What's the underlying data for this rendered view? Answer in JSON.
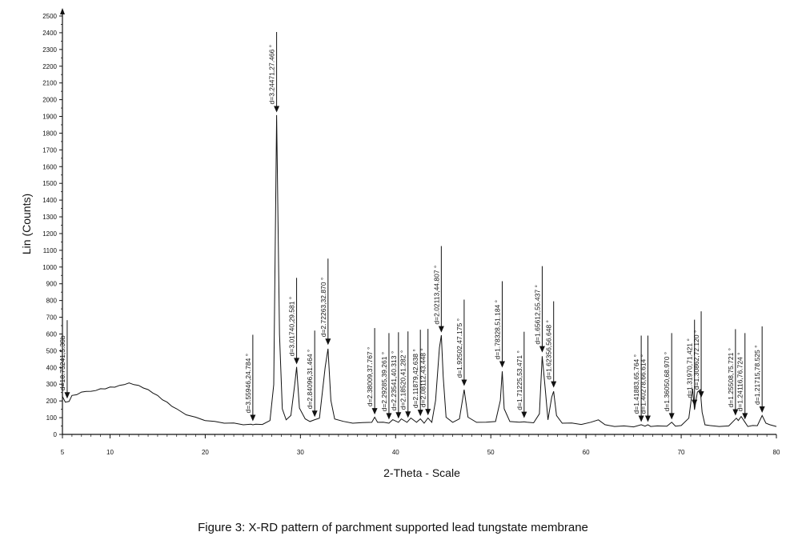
{
  "caption": "Figure 3: X-RD pattern of parchment supported lead tungstate membrane",
  "chart_data": {
    "type": "line",
    "title": "",
    "xlabel": "2-Theta - Scale",
    "ylabel": "Lin (Counts)",
    "xlim": [
      5,
      80
    ],
    "ylim": [
      0,
      2500
    ],
    "x_ticks": [
      5,
      10,
      20,
      30,
      40,
      50,
      60,
      70,
      80
    ],
    "y_ticks": [
      0,
      100,
      200,
      300,
      400,
      500,
      600,
      700,
      800,
      900,
      1000,
      1100,
      1200,
      1300,
      1400,
      1500,
      1600,
      1700,
      1800,
      1900,
      2000,
      2100,
      2200,
      2300,
      2400,
      2500
    ],
    "grid": false,
    "series": [
      {
        "x": [
          5.0,
          5.3,
          5.7,
          6.0,
          6.5,
          7.0,
          7.5,
          8.0,
          8.5,
          9.0,
          9.5,
          10.0,
          10.5,
          11.0,
          11.5,
          12.0,
          12.5,
          13.0,
          13.5,
          14.0,
          14.5,
          15.0,
          15.5,
          16.0,
          16.5,
          17.0,
          18.0,
          19.0,
          20.0,
          21.0,
          22.0,
          23.0,
          24.0,
          24.8,
          25.0,
          25.3,
          26.0,
          26.8,
          27.2,
          27.5,
          27.8,
          28.1,
          28.5,
          29.0,
          29.4,
          29.6,
          29.9,
          30.5,
          31.0,
          31.5,
          32.0,
          32.6,
          32.9,
          33.2,
          33.6,
          34.5,
          35.5,
          36.5,
          37.5,
          37.8,
          38.1,
          38.7,
          39.3,
          39.7,
          40.3,
          40.6,
          41.2,
          41.6,
          42.2,
          42.6,
          43.0,
          43.4,
          43.8,
          44.2,
          44.6,
          44.8,
          45.0,
          45.3,
          46.0,
          46.7,
          47.2,
          47.6,
          48.5,
          49.5,
          50.5,
          51.0,
          51.2,
          51.4,
          52.0,
          53.0,
          53.5,
          53.8,
          54.5,
          55.1,
          55.4,
          55.7,
          56.0,
          56.4,
          56.6,
          56.9,
          57.5,
          58.5,
          59.5,
          60.5,
          61.3,
          62.0,
          63.0,
          64.0,
          65.0,
          65.8,
          66.2,
          66.5,
          66.8,
          67.5,
          68.5,
          69.0,
          69.4,
          70.0,
          70.8,
          71.2,
          71.4,
          71.7,
          72.0,
          72.2,
          72.5,
          73.0,
          74.0,
          75.0,
          75.8,
          76.0,
          76.3,
          76.7,
          77.0,
          77.5,
          78.0,
          78.5,
          78.9,
          79.3,
          80.0
        ],
        "y": [
          230,
          190,
          200,
          230,
          240,
          250,
          260,
          255,
          265,
          270,
          275,
          280,
          285,
          290,
          300,
          305,
          300,
          290,
          280,
          265,
          250,
          230,
          210,
          190,
          170,
          150,
          120,
          100,
          85,
          75,
          70,
          65,
          60,
          58,
          60,
          58,
          62,
          80,
          300,
          1905,
          600,
          150,
          90,
          110,
          300,
          400,
          160,
          90,
          80,
          85,
          100,
          400,
          515,
          200,
          95,
          75,
          70,
          68,
          75,
          100,
          75,
          70,
          70,
          85,
          75,
          90,
          75,
          95,
          75,
          90,
          70,
          95,
          75,
          200,
          520,
          590,
          350,
          100,
          75,
          90,
          270,
          100,
          75,
          70,
          80,
          200,
          380,
          150,
          80,
          70,
          78,
          70,
          72,
          120,
          470,
          280,
          90,
          220,
          260,
          110,
          70,
          65,
          62,
          70,
          90,
          55,
          50,
          48,
          48,
          55,
          52,
          55,
          50,
          48,
          52,
          70,
          52,
          50,
          100,
          270,
          150,
          250,
          270,
          130,
          60,
          50,
          50,
          48,
          100,
          80,
          110,
          70,
          50,
          50,
          55,
          110,
          70,
          55,
          50
        ]
      }
    ],
    "annotations": [
      {
        "x": 5.5,
        "label": "d=16.75241,5.30b"
      },
      {
        "x": 25.0,
        "label": "d=3.55946,24.784 °"
      },
      {
        "x": 27.5,
        "label": "d=3.24471,27.466 °"
      },
      {
        "x": 29.6,
        "label": "d=3.01740,29.581 °"
      },
      {
        "x": 31.5,
        "label": "d=2.84096,31.464 °"
      },
      {
        "x": 32.9,
        "label": "d=2.72263,32.870 °"
      },
      {
        "x": 37.8,
        "label": "d=2.38009,37.767 °"
      },
      {
        "x": 39.3,
        "label": "d=2.29285,39.261 °"
      },
      {
        "x": 40.3,
        "label": "d=2.23541,40.313 °"
      },
      {
        "x": 41.3,
        "label": "d=2.18520,41.282 °"
      },
      {
        "x": 42.6,
        "label": "d=2.11879,42.638 °"
      },
      {
        "x": 43.4,
        "label": "d=2.08112,43.448 °"
      },
      {
        "x": 44.8,
        "label": "d=2.02113,44.807 °"
      },
      {
        "x": 47.2,
        "label": "d=1.92502,47.175 °"
      },
      {
        "x": 51.2,
        "label": "d=1.78328,51.184 °"
      },
      {
        "x": 53.5,
        "label": "d=1.71225,53.471 °"
      },
      {
        "x": 55.4,
        "label": "d=1.65612,55.437 °"
      },
      {
        "x": 56.6,
        "label": "d=1.62356,56.648 °"
      },
      {
        "x": 65.8,
        "label": "d=1.41883,65.764 °"
      },
      {
        "x": 66.5,
        "label": "d=1.40278,66.614 °"
      },
      {
        "x": 69.0,
        "label": "d=1.36050,68.970 °"
      },
      {
        "x": 71.4,
        "label": "d=1.31970,71.421 °"
      },
      {
        "x": 72.1,
        "label": "d=1.30862,72.120 °"
      },
      {
        "x": 75.7,
        "label": "d=1.25508,75.721 °"
      },
      {
        "x": 76.7,
        "label": "d=1.24116,76.724 °"
      },
      {
        "x": 78.5,
        "label": "d=1.21715,78.525 °"
      }
    ]
  }
}
